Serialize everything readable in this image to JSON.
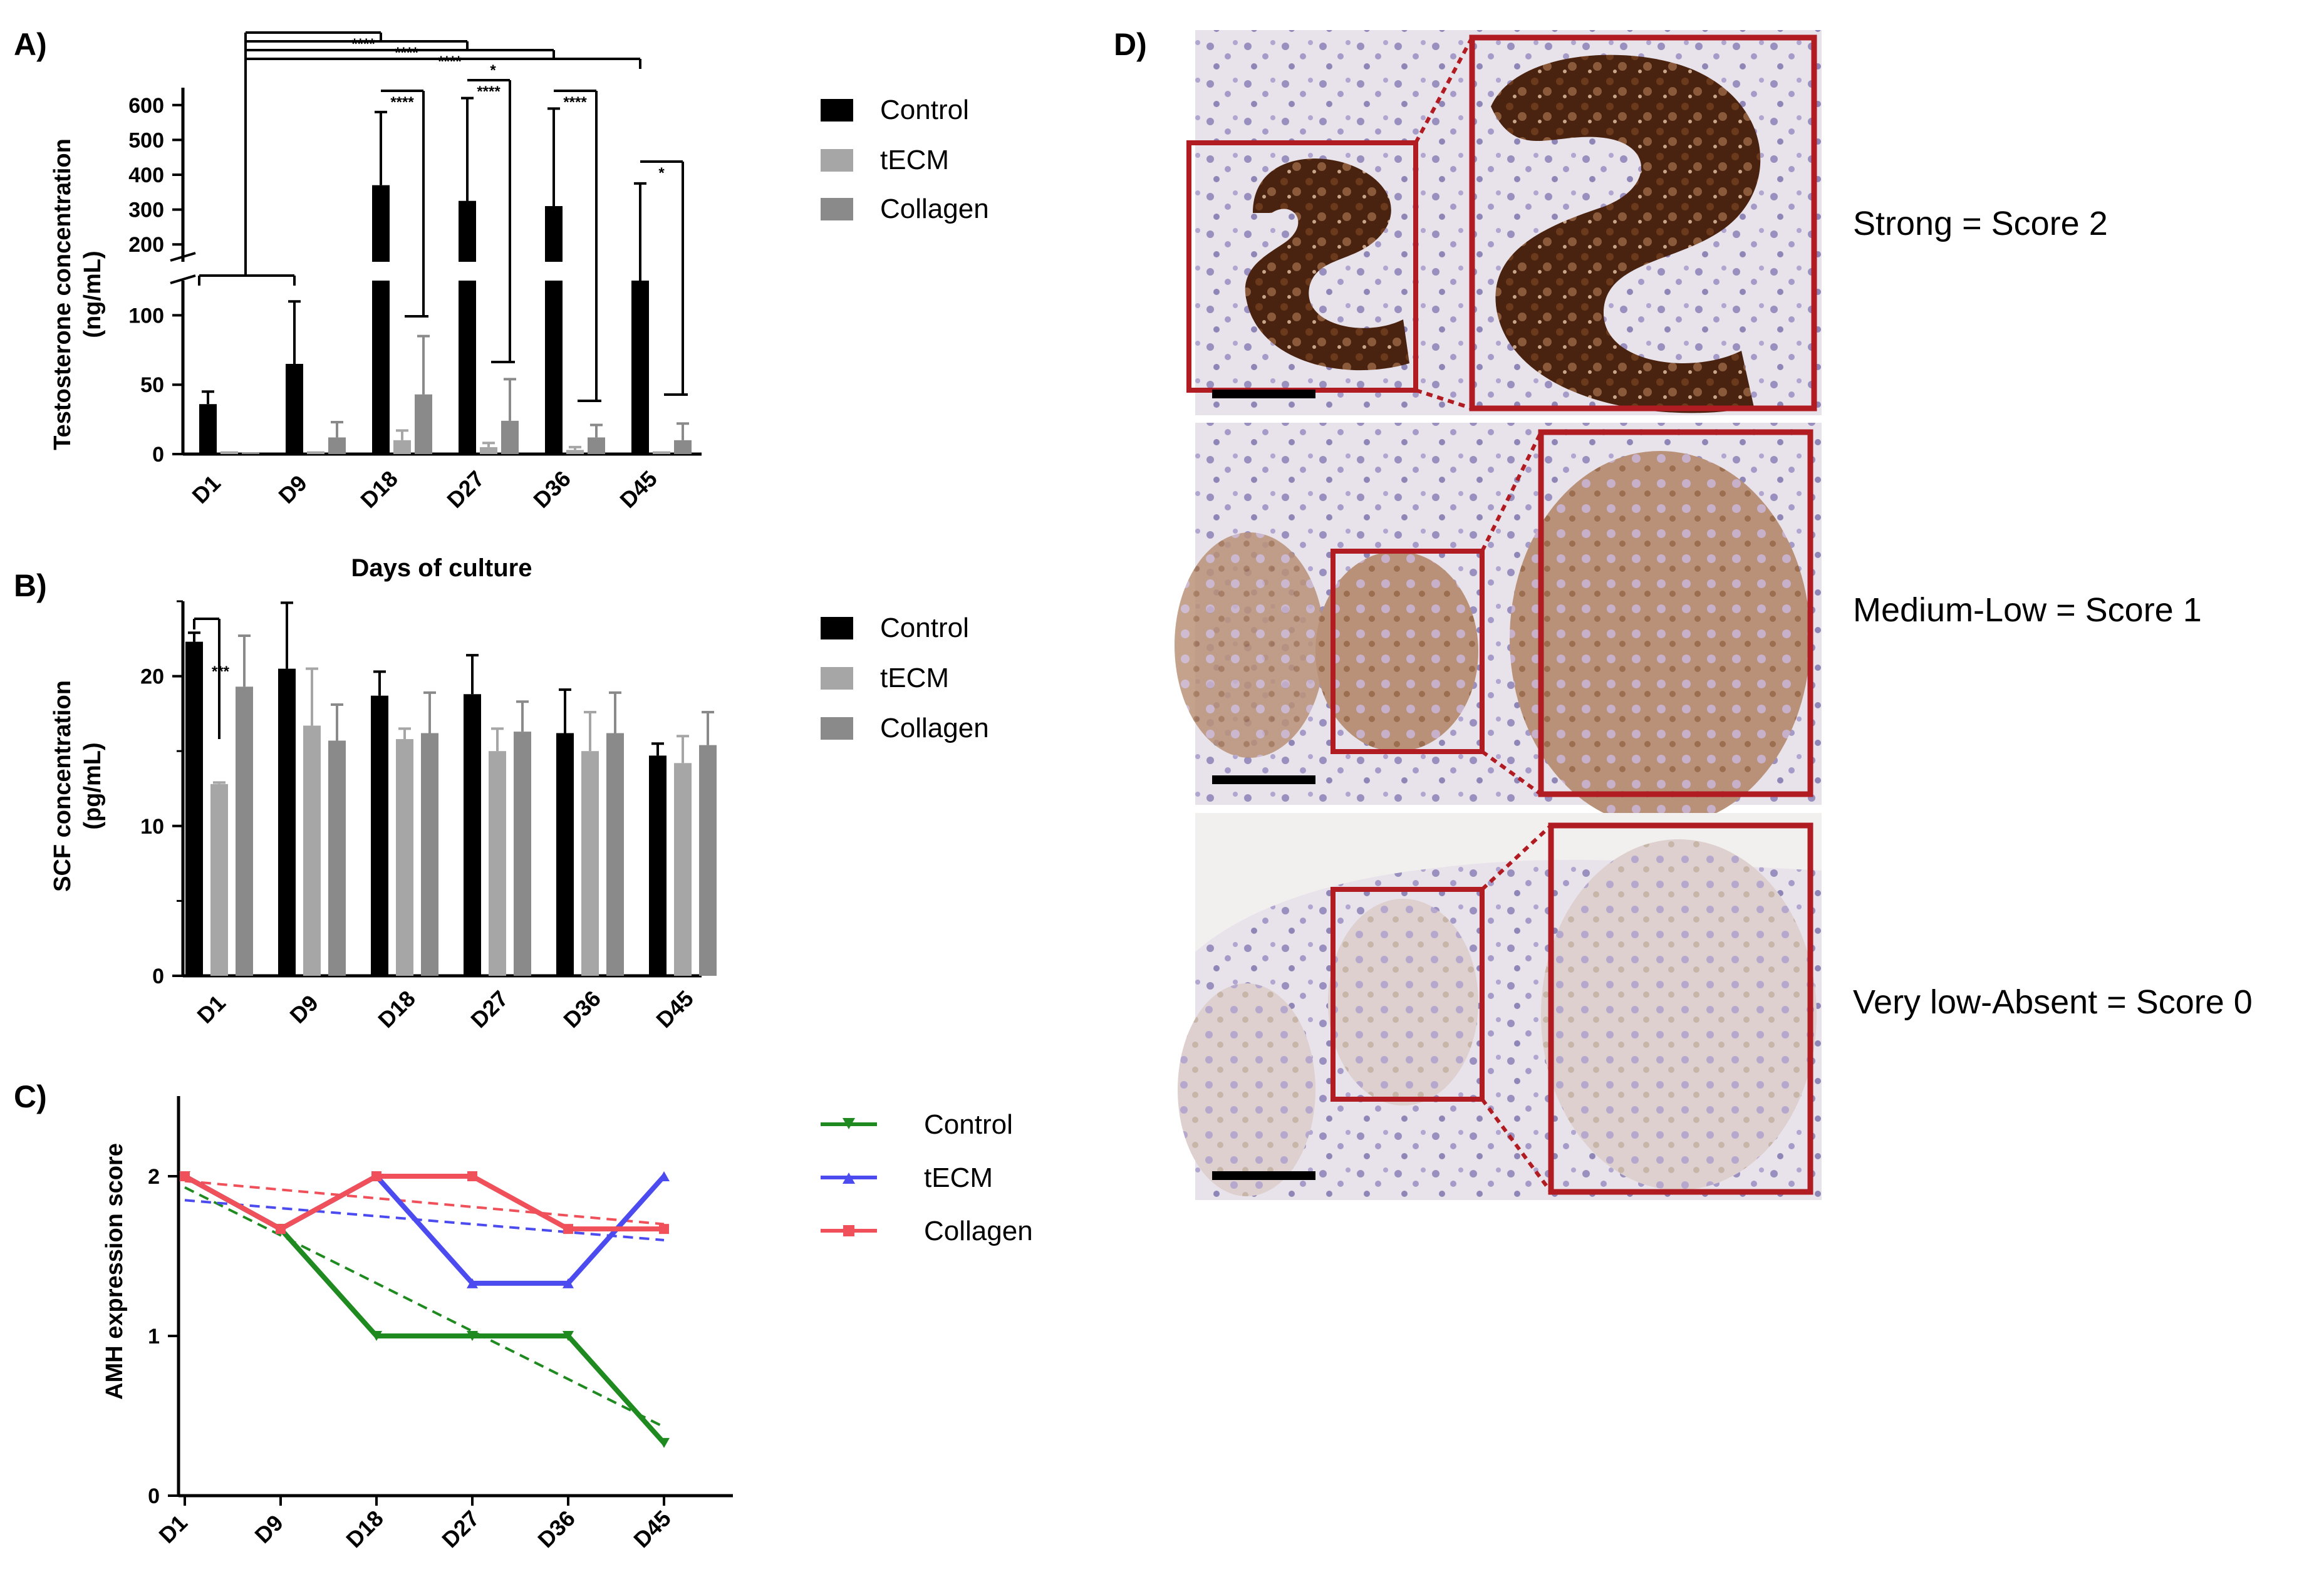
{
  "colors": {
    "control_bar": "#000000",
    "tecm_bar": "#a6a6a6",
    "collagen_bar": "#8a8a8a",
    "control_line": "#1f8a1f",
    "tecm_line": "#4b4bf0",
    "collagen_line": "#f0505a",
    "frame": "#b01c22"
  },
  "panels": {
    "a": "A)",
    "b": "B)",
    "c": "C)",
    "d": "D)"
  },
  "chart_data": [
    {
      "type": "bar",
      "panel": "A",
      "ylabel_line1": "Testosterone concentration",
      "ylabel_line2": "(ng/mL)",
      "xlabel": "Days of culture",
      "categories": [
        "D1",
        "D9",
        "D18",
        "D27",
        "D36",
        "D45"
      ],
      "axis_break": true,
      "yticks_lower": [
        "0",
        "50",
        "100"
      ],
      "yticks_upper": [
        "200",
        "300",
        "400",
        "500",
        "600"
      ],
      "ylim_lower": [
        0,
        125
      ],
      "ylim_upper": [
        150,
        650
      ],
      "series": [
        {
          "name": "Control",
          "values": [
            36,
            65,
            370,
            325,
            310,
            125
          ],
          "errors": [
            9,
            45,
            210,
            295,
            280,
            250
          ]
        },
        {
          "name": "tECM",
          "values": [
            2,
            2,
            10,
            5,
            3,
            2
          ],
          "errors": [
            0,
            0,
            7,
            3,
            2,
            0
          ]
        },
        {
          "name": "Collagen",
          "values": [
            1,
            12,
            43,
            24,
            12,
            10
          ],
          "errors": [
            0,
            11,
            42,
            30,
            9,
            12
          ]
        }
      ],
      "significance": [
        {
          "label": "****",
          "from": "D1",
          "to": "D18"
        },
        {
          "label": "****",
          "from": "D1",
          "to": "D27"
        },
        {
          "label": "****",
          "from": "D1",
          "to": "D36"
        },
        {
          "label": "*",
          "from": "D1",
          "to": "D45"
        },
        {
          "label": "****",
          "group": "D18"
        },
        {
          "label": "****",
          "group": "D27"
        },
        {
          "label": "****",
          "group": "D36"
        },
        {
          "label": "*",
          "group": "D45"
        }
      ]
    },
    {
      "type": "bar",
      "panel": "B",
      "ylabel_line1": "SCF concentration",
      "ylabel_line2": "(pg/mL)",
      "categories": [
        "D1",
        "D9",
        "D18",
        "D27",
        "D36",
        "D45"
      ],
      "yticks": [
        "0",
        "10",
        "20"
      ],
      "ylim": [
        0,
        25
      ],
      "series": [
        {
          "name": "Control",
          "values": [
            22.3,
            20.5,
            18.7,
            18.8,
            16.2,
            14.7
          ],
          "errors": [
            0.6,
            4.4,
            1.6,
            2.6,
            2.9,
            0.8
          ]
        },
        {
          "name": "tECM",
          "values": [
            12.8,
            16.7,
            15.8,
            15.0,
            15.0,
            14.2
          ],
          "errors": [
            0.1,
            3.8,
            0.7,
            1.5,
            2.6,
            1.8
          ]
        },
        {
          "name": "Collagen",
          "values": [
            19.3,
            15.7,
            16.2,
            16.3,
            16.2,
            15.4
          ],
          "errors": [
            3.4,
            2.4,
            2.7,
            2.0,
            2.7,
            2.2
          ]
        }
      ],
      "significance": [
        {
          "label": "***",
          "group": "D1"
        }
      ]
    },
    {
      "type": "line",
      "panel": "C",
      "ylabel": "AMH expression score",
      "categories": [
        "D1",
        "D9",
        "D18",
        "D27",
        "D36",
        "D45"
      ],
      "yticks": [
        "0",
        "1",
        "2"
      ],
      "ylim": [
        0,
        2.3
      ],
      "series": [
        {
          "name": "Control",
          "means": [
            2,
            1.67,
            1,
            1,
            1,
            0.33
          ],
          "trend": [
            1.93,
            0.43
          ]
        },
        {
          "name": "tECM",
          "means": [
            2,
            1.67,
            2,
            1.33,
            1.33,
            2
          ],
          "trend": [
            1.85,
            1.6
          ]
        },
        {
          "name": "Collagen",
          "means": [
            2,
            1.67,
            2,
            2,
            1.67,
            1.67
          ],
          "trend": [
            1.97,
            1.7
          ]
        }
      ]
    }
  ],
  "panel_d": {
    "rows": [
      {
        "label": "Strong = Score 2"
      },
      {
        "label": "Medium-Low = Score 1"
      },
      {
        "label": "Very low-Absent = Score 0"
      }
    ]
  }
}
